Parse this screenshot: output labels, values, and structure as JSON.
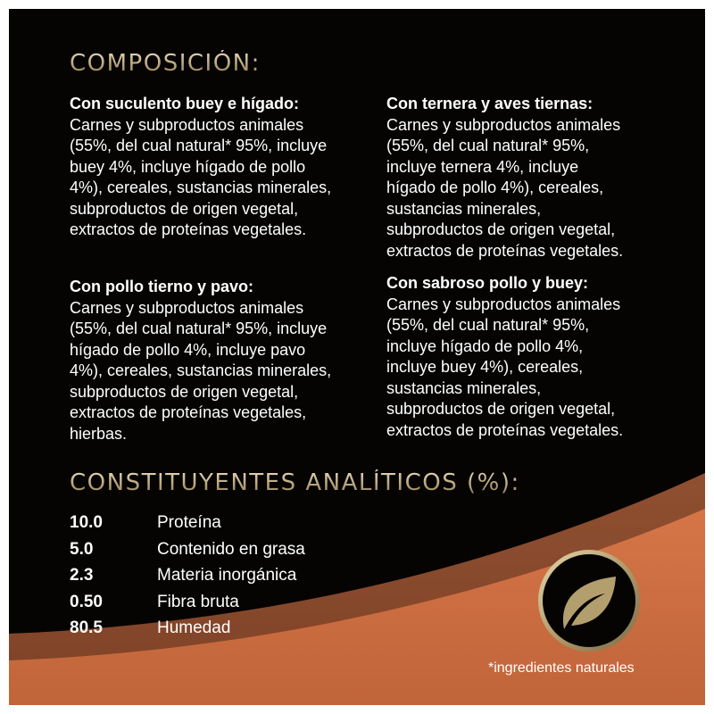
{
  "composition": {
    "title": "COMPOSICIÓN:",
    "blocks": [
      {
        "title": "Con suculento buey e hígado:",
        "lines": [
          "Carnes y subproductos animales",
          "(55%, del cual natural* 95%, incluye",
          "buey 4%, incluye hígado de pollo",
          "4%), cereales, sustancias minerales,",
          "subproductos de origen vegetal,",
          "extractos de proteínas vegetales."
        ]
      },
      {
        "title": "Con ternera y aves tiernas:",
        "lines": [
          "Carnes y subproductos animales",
          "(55%, del cual natural* 95%,",
          "incluye ternera 4%, incluye",
          "hígado de pollo 4%), cereales,",
          "sustancias minerales,",
          "subproductos de origen vegetal,",
          "extractos de proteínas vegetales."
        ]
      },
      {
        "title": "Con pollo tierno y pavo:",
        "lines": [
          "Carnes y subproductos animales",
          "(55%, del cual natural* 95%, incluye",
          "hígado de pollo 4%, incluye pavo",
          "4%), cereales, sustancias minerales,",
          "subproductos de origen vegetal,",
          "extractos de proteínas vegetales,",
          "hierbas."
        ]
      },
      {
        "title": "Con sabroso pollo y buey:",
        "lines": [
          "Carnes y subproductos animales",
          "(55%, del cual natural* 95%,",
          "incluye hígado de pollo 4%,",
          "incluye buey 4%), cereales,",
          "sustancias minerales,",
          "subproductos de origen vegetal,",
          "extractos de proteínas vegetales."
        ]
      }
    ]
  },
  "analytical": {
    "title": "CONSTITUYENTES ANALÍTICOS (%):",
    "rows": [
      {
        "value": "10.0",
        "label": "Proteína"
      },
      {
        "value": "5.0",
        "label": "Contenido en grasa"
      },
      {
        "value": "2.3",
        "label": "Materia inorgánica"
      },
      {
        "value": "0.50",
        "label": "Fibra bruta"
      },
      {
        "value": "80.5",
        "label": "Humedad"
      }
    ]
  },
  "badge": {
    "icon": "leaf-icon"
  },
  "footnote": "*ingredientes naturales",
  "colors": {
    "background": "#050403",
    "accent_orange": "#c8683a",
    "gold": "#b9a57c"
  }
}
